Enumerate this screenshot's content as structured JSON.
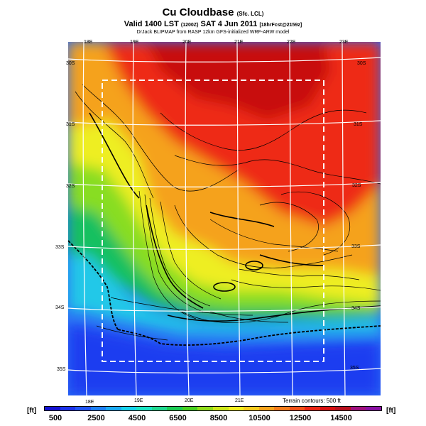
{
  "header": {
    "title": "Cu Cloudbase",
    "title_suffix": "(Sfc. LCL)",
    "subtitle_main": "Valid 1400 LST",
    "subtitle_time": "(1200Z)",
    "subtitle_date": "SAT 4 Jun 2011",
    "subtitle_forecast": "[18hrFcst@2159z]",
    "credit": "DrJack BLIPMAP from RASP 12km GFS-initialized WRF-ARW model"
  },
  "map": {
    "lon_top": [
      "18E",
      "19E",
      "20E",
      "21E",
      "22E",
      "23E"
    ],
    "lon_bottom": [
      "18E",
      "19E",
      "20E",
      "21E"
    ],
    "lat_left": [
      "30S",
      "31S",
      "32S",
      "33S",
      "34S",
      "35S"
    ],
    "lat_right": [
      "30S",
      "31S",
      "32S",
      "33S",
      "34S",
      "35S"
    ],
    "terrain_contours": "Terrain contours: 500 ft",
    "colors": {
      "ocean_deep": "#1e3cf0",
      "ocean": "#2a6ef5",
      "coast": "#20c8e8",
      "low": "#18c060",
      "mid": "#88dd22",
      "yellow": "#eeee22",
      "orange": "#f59a1e",
      "red": "#ee2a14",
      "dark_red": "#c81010"
    }
  },
  "colorbar": {
    "unit_left": "[ft]",
    "unit_right": "[ft]",
    "ticks": [
      "500",
      "2500",
      "4500",
      "6500",
      "8500",
      "10500",
      "12500",
      "14500"
    ],
    "colors": [
      "#1412d2",
      "#1c32ea",
      "#2054f4",
      "#1e80f4",
      "#1aaaf2",
      "#16d2ec",
      "#1ce4c4",
      "#20d890",
      "#1ccc54",
      "#48d020",
      "#90dc1a",
      "#cce61a",
      "#f2ee1e",
      "#f6cc1e",
      "#f6a41c",
      "#f47c1a",
      "#f25218",
      "#ea2614",
      "#d81010",
      "#b8101e",
      "#a0107e",
      "#8a10a2"
    ]
  }
}
